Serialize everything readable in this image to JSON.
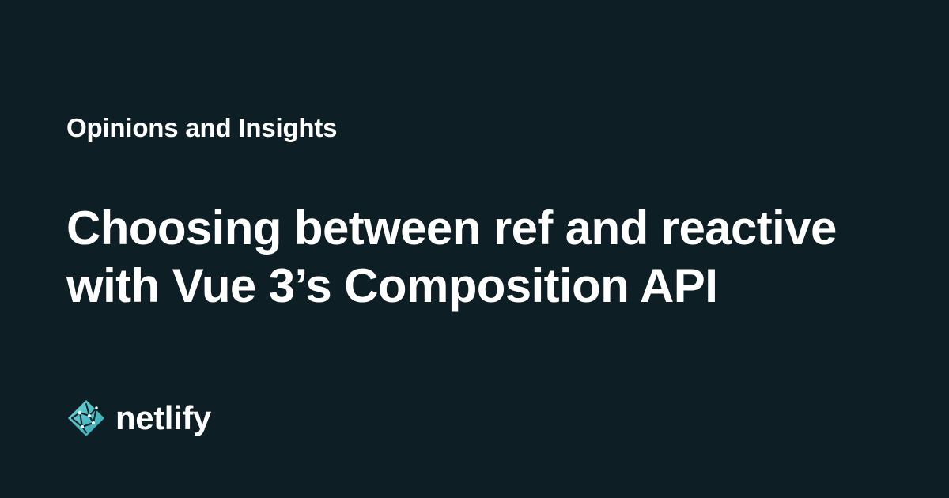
{
  "eyebrow": "Opinions and Insights",
  "headline": {
    "line1": "Choosing between ref and reactive",
    "line2": "with Vue 3’s Composition API"
  },
  "brand": {
    "name": "netlify",
    "logo_icon": "netlify-logo-icon"
  },
  "colors": {
    "background": "#0e1e25",
    "text": "#ffffff",
    "logo_primary": "#32a8b3",
    "logo_light": "#6ed3d6"
  }
}
